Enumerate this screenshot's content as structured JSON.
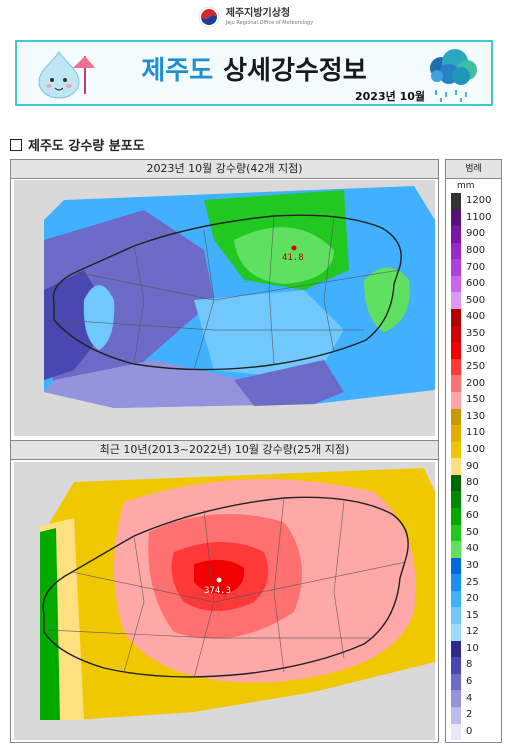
{
  "header": {
    "agency_ko": "제주지방기상청",
    "agency_en": "Jeju Regional Office of Meteorology"
  },
  "banner": {
    "title_region": "제주도",
    "title_main": "상세강수정보",
    "date": "2023년 10월"
  },
  "section": {
    "heading": "제주도 강수량 분포도"
  },
  "maps": [
    {
      "caption": "2023년 10월 강수량(42개 지점)",
      "max_label": "41.8"
    },
    {
      "caption": "최근 10년(2013~2022년) 10월 강수량(25개 지점)",
      "max_label": "374.3"
    }
  ],
  "legend": {
    "header": "범례",
    "unit": "mm",
    "labels": [
      "1200",
      "1100",
      "900",
      "800",
      "700",
      "600",
      "500",
      "400",
      "350",
      "300",
      "250",
      "200",
      "150",
      "130",
      "110",
      "100",
      "90",
      "80",
      "70",
      "60",
      "50",
      "40",
      "30",
      "25",
      "20",
      "15",
      "12",
      "10",
      "8",
      "6",
      "4",
      "2",
      "0"
    ],
    "colors": [
      "#333333",
      "#5a1078",
      "#7a18a6",
      "#9a28c8",
      "#b23ee0",
      "#c866ee",
      "#dc98f6",
      "#b40000",
      "#d20000",
      "#f00000",
      "#ff3838",
      "#ff7070",
      "#ffa8a8",
      "#c89a00",
      "#e0b000",
      "#f0c800",
      "#ffe080",
      "#006a00",
      "#008a00",
      "#00aa00",
      "#20c820",
      "#60e060",
      "#006be0",
      "#1e8ff0",
      "#40b0ff",
      "#70c8ff",
      "#a0dcff",
      "#2c2c8c",
      "#4848b0",
      "#6c6cc8",
      "#9494dc",
      "#bcbcec",
      "#e8e8f8"
    ]
  },
  "colors": {
    "banner_border": "#3fc6d8",
    "title_blue": "#1f8fd6"
  }
}
